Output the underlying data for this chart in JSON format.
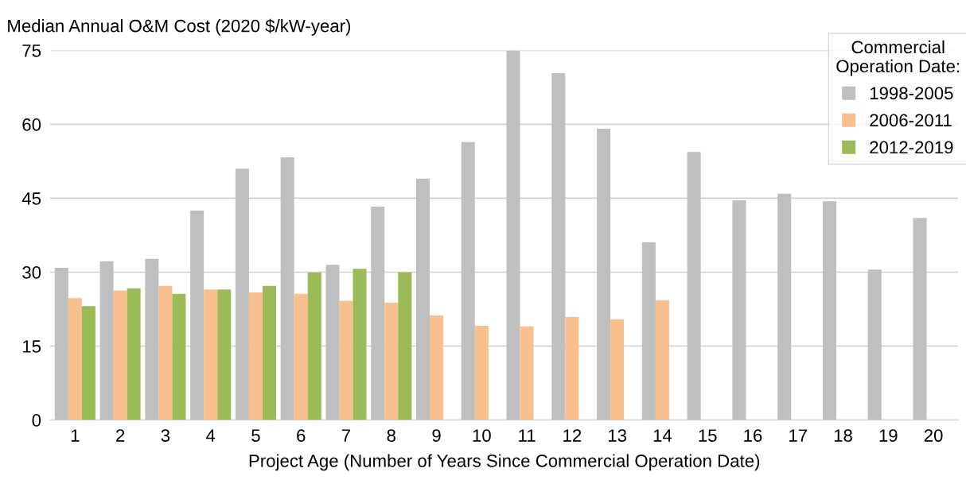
{
  "chart_data": {
    "type": "bar",
    "ylabel": "Median Annual O&M Cost (2020 $/kW-year)",
    "xlabel": "Project Age (Number of Years Since Commercial Operation Date)",
    "legend_title": "Commercial\nOperation Date:",
    "categories": [
      "1",
      "2",
      "3",
      "4",
      "5",
      "6",
      "7",
      "8",
      "9",
      "10",
      "11",
      "12",
      "13",
      "14",
      "15",
      "16",
      "17",
      "18",
      "19",
      "20"
    ],
    "series": [
      {
        "name": "1998-2005",
        "color": "#bfbfbf",
        "values": [
          30.9,
          32.2,
          32.7,
          42.5,
          51.0,
          53.3,
          31.5,
          43.3,
          49.0,
          56.4,
          75.0,
          70.4,
          59.1,
          36.1,
          54.4,
          44.6,
          45.9,
          44.4,
          30.5,
          41.0
        ]
      },
      {
        "name": "2006-2011",
        "color": "#f8bf8f",
        "values": [
          24.7,
          26.3,
          27.2,
          26.5,
          25.9,
          25.6,
          24.2,
          23.8,
          21.2,
          19.1,
          19.0,
          20.9,
          20.4,
          24.3,
          null,
          null,
          null,
          null,
          null,
          null
        ]
      },
      {
        "name": "2012-2019",
        "color": "#9bbb59",
        "values": [
          23.1,
          26.7,
          25.6,
          26.5,
          27.2,
          29.9,
          30.7,
          30.0,
          null,
          null,
          null,
          null,
          null,
          null,
          null,
          null,
          null,
          null,
          null,
          null
        ]
      }
    ],
    "ylim": [
      0,
      75
    ],
    "yticks": [
      0,
      15,
      30,
      45,
      60,
      75
    ],
    "grid": "y",
    "legend": "top right"
  }
}
